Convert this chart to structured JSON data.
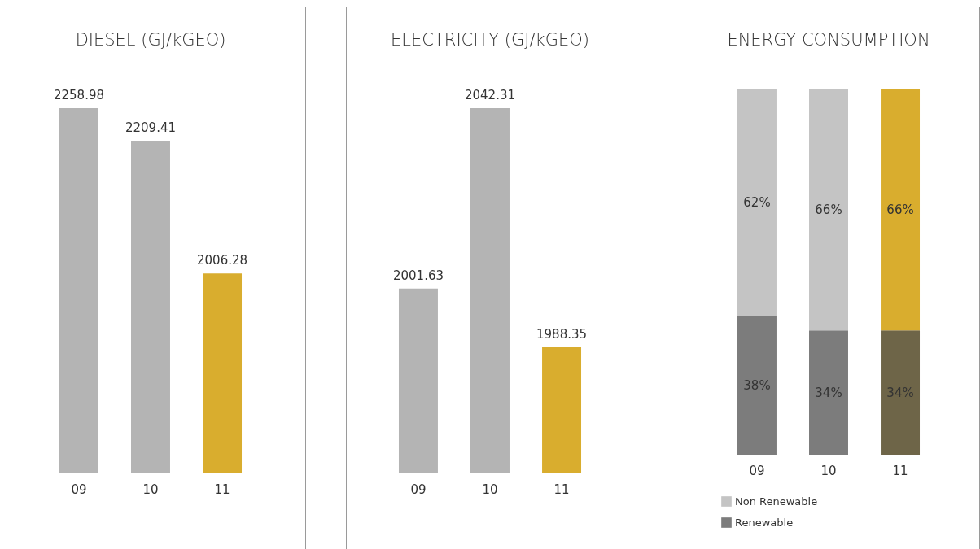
{
  "chart_data": [
    {
      "type": "bar",
      "title": "DIESEL (GJ/kGEO)",
      "categories": [
        "09",
        "10",
        "11"
      ],
      "values": [
        2258.98,
        2209.41,
        2006.28
      ],
      "colors": [
        "#b4b4b4",
        "#b4b4b4",
        "#d9ad2e"
      ],
      "ylim": [
        1701,
        2258.98
      ],
      "data_labels": true
    },
    {
      "type": "bar",
      "title": "ELECTRICITY (GJ/kGEO)",
      "categories": [
        "09",
        "10",
        "11"
      ],
      "values": [
        2001.63,
        2042.31,
        1988.35
      ],
      "colors": [
        "#b4b4b4",
        "#b4b4b4",
        "#d9ad2e"
      ],
      "ylim": [
        1959.9,
        2042.31
      ],
      "data_labels": true
    },
    {
      "type": "bar",
      "title": "ENERGY CONSUMPTION",
      "stacked": true,
      "categories": [
        "09",
        "10",
        "11"
      ],
      "ylim": [
        0,
        100
      ],
      "legend": "bottom left",
      "series": [
        {
          "name": "Renewable",
          "color": "#7c7c7c",
          "colors": [
            "#7c7c7c",
            "#7c7c7c",
            "#6e6548"
          ],
          "values": [
            38,
            34,
            34
          ],
          "value_labels": [
            "38%",
            "34%",
            "34%"
          ]
        },
        {
          "name": "Non Renewable",
          "color": "#c4c4c4",
          "colors": [
            "#c4c4c4",
            "#c4c4c4",
            "#d9ad2e"
          ],
          "values": [
            62,
            66,
            66
          ],
          "value_labels": [
            "62%",
            "66%",
            "66%"
          ]
        }
      ]
    }
  ]
}
